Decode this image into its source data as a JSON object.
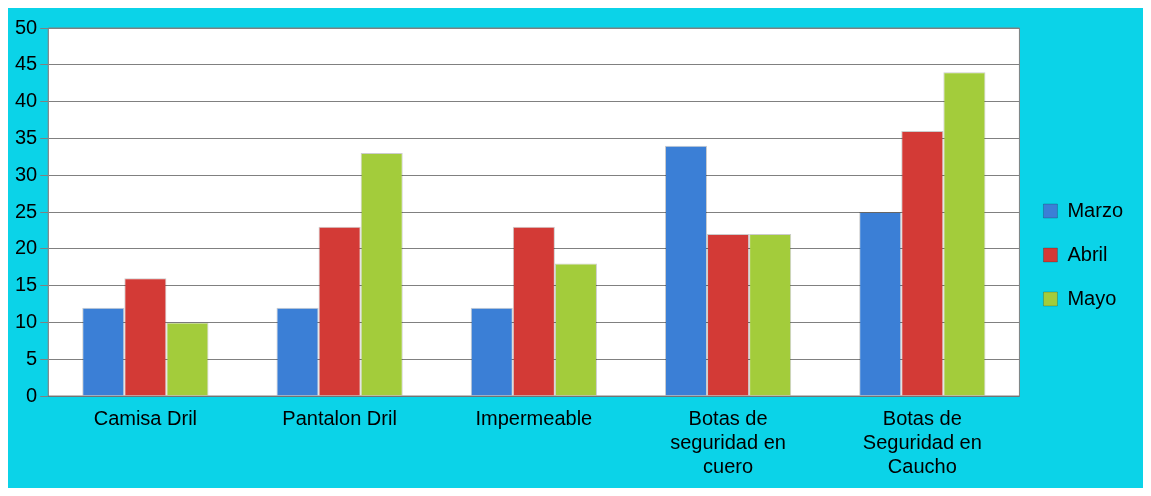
{
  "chart_data": {
    "type": "bar",
    "categories": [
      "Camisa Dril",
      "Pantalon Dril",
      "Impermeable",
      "Botas de seguridad en cuero",
      "Botas de Seguridad en Caucho"
    ],
    "series": [
      {
        "name": "Marzo",
        "color": "#3b7fd6",
        "values": [
          12,
          12,
          12,
          34,
          25
        ]
      },
      {
        "name": "Abril",
        "color": "#d33a36",
        "values": [
          16,
          23,
          23,
          22,
          36
        ]
      },
      {
        "name": "Mayo",
        "color": "#a3cc3b",
        "values": [
          10,
          33,
          18,
          22,
          44
        ]
      }
    ],
    "ylim": [
      0,
      50
    ],
    "yticks": [
      0,
      5,
      10,
      15,
      20,
      25,
      30,
      35,
      40,
      45,
      50
    ],
    "grid": "y",
    "legend": "right"
  }
}
